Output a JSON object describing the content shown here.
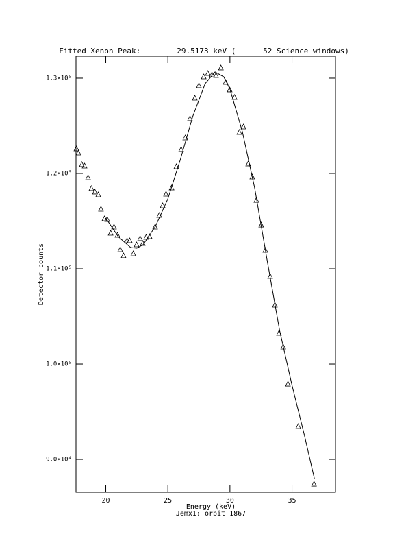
{
  "chart_data": {
    "type": "scatter",
    "title": "Fitted Xenon Peak:        29.5173 keV (      52 Science windows)",
    "x_label": "Energy (keV)",
    "subtitle": "Jemx1: orbit 1867",
    "y_label": "Detector counts",
    "xlim": [
      17.6,
      38.5
    ],
    "ylim": [
      86550,
      132300
    ],
    "xticks": [
      20,
      25,
      30,
      35
    ],
    "yticks": [
      {
        "value": 90000,
        "label": "9.0×10⁴"
      },
      {
        "value": 100000,
        "label": "1.0×10⁵"
      },
      {
        "value": 110000,
        "label": "1.1×10⁵"
      },
      {
        "value": 120000,
        "label": "1.2×10⁵"
      },
      {
        "value": 130000,
        "label": "1.3×10⁵"
      }
    ],
    "series": [
      {
        "color": "#000000",
        "marker": "triangle",
        "x": [
          17.63,
          17.8,
          18.07,
          18.29,
          18.57,
          18.84,
          19.12,
          19.39,
          19.61,
          19.89,
          20.11,
          20.39,
          20.66,
          20.94,
          21.16,
          21.43,
          21.71,
          21.93,
          22.21,
          22.48,
          22.76,
          22.98,
          23.25,
          23.53,
          23.97,
          24.3,
          24.58,
          24.85,
          25.3,
          25.68,
          26.07,
          26.4,
          26.78,
          27.17,
          27.5,
          27.89,
          28.22,
          28.55,
          28.88,
          29.27,
          29.65,
          29.98,
          30.37,
          30.76,
          31.09,
          31.47,
          31.8,
          32.13,
          32.52,
          32.85,
          33.24,
          33.62,
          33.95,
          34.29,
          34.67,
          35.5,
          36.77
        ],
        "values": [
          122590,
          122160,
          120940,
          120790,
          119570,
          118420,
          118060,
          117770,
          116260,
          115250,
          115180,
          113740,
          114390,
          113530,
          112010,
          111370,
          112950,
          112950,
          111580,
          112520,
          113170,
          112660,
          113310,
          113380,
          114390,
          115610,
          116620,
          117840,
          118490,
          120720,
          122520,
          123740,
          125760,
          127910,
          129210,
          130140,
          130500,
          130360,
          130290,
          131080,
          129570,
          128780,
          127990,
          124320,
          124890,
          121010,
          119640,
          117190,
          114600,
          111940,
          109210,
          106190,
          103240,
          101800,
          97910,
          93450,
          87410
        ]
      },
      {
        "color": "#000000",
        "marker": "none",
        "line": true,
        "x": [
          20,
          21,
          22,
          22.5,
          23,
          24,
          25,
          26,
          27,
          28,
          28.8,
          29.5,
          30,
          31,
          32,
          33,
          34,
          35,
          36,
          36.8
        ],
        "values": [
          115320,
          113380,
          112230,
          112160,
          112520,
          114460,
          117340,
          121440,
          125970,
          129420,
          130650,
          130140,
          128850,
          124390,
          118420,
          110860,
          103530,
          97770,
          92520,
          87990
        ]
      }
    ]
  }
}
